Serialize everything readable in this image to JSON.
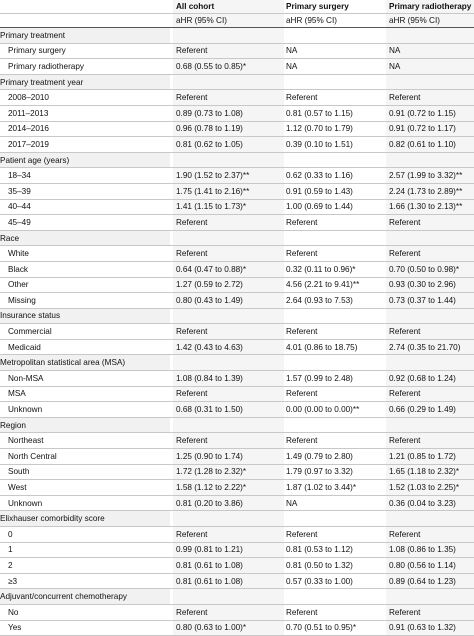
{
  "headers": {
    "col1": "All cohort",
    "col2": "Primary surgery",
    "col3": "Primary radiotherapy",
    "sub1": "aHR (95% CI)",
    "sub2": "aHR (95% CI)",
    "sub3": "aHR (95% CI)"
  },
  "rows": [
    {
      "type": "section",
      "label": "Primary treatment",
      "c1": "",
      "c2": "",
      "c3": ""
    },
    {
      "type": "item",
      "label": "Primary surgery",
      "c1": "Referent",
      "c2": "NA",
      "c3": "NA"
    },
    {
      "type": "item",
      "label": "Primary radiotherapy",
      "c1": "0.68 (0.55 to 0.85)*",
      "c2": "NA",
      "c3": "NA"
    },
    {
      "type": "section",
      "label": "Primary treatment year",
      "c1": "",
      "c2": "",
      "c3": ""
    },
    {
      "type": "item",
      "label": "2008–2010",
      "c1": "Referent",
      "c2": "Referent",
      "c3": "Referent"
    },
    {
      "type": "item",
      "label": "2011–2013",
      "c1": "0.89 (0.73 to 1.08)",
      "c2": "0.81 (0.57 to 1.15)",
      "c3": "0.91 (0.72 to 1.15)"
    },
    {
      "type": "item",
      "label": "2014–2016",
      "c1": "0.96 (0.78 to 1.19)",
      "c2": "1.12 (0.70 to 1.79)",
      "c3": "0.91 (0.72 to 1.17)"
    },
    {
      "type": "item",
      "label": "2017–2019",
      "c1": "0.81 (0.62 to 1.05)",
      "c2": "0.39 (0.10 to 1.51)",
      "c3": "0.82 (0.61 to 1.10)"
    },
    {
      "type": "section",
      "label": "Patient age (years)",
      "c1": "",
      "c2": "",
      "c3": ""
    },
    {
      "type": "item",
      "label": "18–34",
      "c1": "1.90 (1.52 to 2.37)**",
      "c2": "0.62 (0.33 to 1.16)",
      "c3": "2.57 (1.99 to 3.32)**"
    },
    {
      "type": "item",
      "label": "35–39",
      "c1": "1.75 (1.41 to 2.16)**",
      "c2": "0.91 (0.59 to 1.43)",
      "c3": "2.24 (1.73 to 2.89)**"
    },
    {
      "type": "item",
      "label": "40–44",
      "c1": "1.41 (1.15 to 1.73)*",
      "c2": "1.00 (0.69 to 1.44)",
      "c3": "1.66 (1.30 to 2.13)**"
    },
    {
      "type": "item",
      "label": "45–49",
      "c1": "Referent",
      "c2": "Referent",
      "c3": "Referent"
    },
    {
      "type": "section",
      "label": "Race",
      "c1": "",
      "c2": "",
      "c3": ""
    },
    {
      "type": "item",
      "label": "White",
      "c1": "Referent",
      "c2": "Referent",
      "c3": "Referent"
    },
    {
      "type": "item",
      "label": "Black",
      "c1": "0.64 (0.47 to 0.88)*",
      "c2": "0.32 (0.11 to 0.96)*",
      "c3": "0.70 (0.50 to 0.98)*"
    },
    {
      "type": "item",
      "label": "Other",
      "c1": "1.27 (0.59 to 2.72)",
      "c2": "4.56 (2.21 to 9.41)**",
      "c3": "0.93 (0.30 to 2.96)"
    },
    {
      "type": "item",
      "label": "Missing",
      "c1": "0.80 (0.43 to 1.49)",
      "c2": "2.64 (0.93 to 7.53)",
      "c3": "0.73 (0.37 to 1.44)"
    },
    {
      "type": "section",
      "label": "Insurance status",
      "c1": "",
      "c2": "",
      "c3": ""
    },
    {
      "type": "item",
      "label": "Commercial",
      "c1": "Referent",
      "c2": "Referent",
      "c3": "Referent"
    },
    {
      "type": "item",
      "label": "Medicaid",
      "c1": "1.42 (0.43 to 4.63)",
      "c2": "4.01 (0.86 to 18.75)",
      "c3": "2.74 (0.35 to 21.70)"
    },
    {
      "type": "section",
      "label": "Metropolitan statistical area (MSA)",
      "c1": "",
      "c2": "",
      "c3": ""
    },
    {
      "type": "item",
      "label": "Non-MSA",
      "c1": "1.08 (0.84 to 1.39)",
      "c2": "1.57 (0.99 to 2.48)",
      "c3": "0.92 (0.68 to 1.24)"
    },
    {
      "type": "item",
      "label": "MSA",
      "c1": "Referent",
      "c2": "Referent",
      "c3": "Referent"
    },
    {
      "type": "item",
      "label": "Unknown",
      "c1": "0.68 (0.31 to 1.50)",
      "c2": "0.00 (0.00 to 0.00)**",
      "c3": "0.66 (0.29 to 1.49)"
    },
    {
      "type": "section",
      "label": "Region",
      "c1": "",
      "c2": "",
      "c3": ""
    },
    {
      "type": "item",
      "label": "Northeast",
      "c1": "Referent",
      "c2": "Referent",
      "c3": "Referent"
    },
    {
      "type": "item",
      "label": "North Central",
      "c1": "1.25 (0.90 to 1.74)",
      "c2": "1.49 (0.79 to 2.80)",
      "c3": "1.21 (0.85 to 1.72)"
    },
    {
      "type": "item",
      "label": "South",
      "c1": "1.72 (1.28 to 2.32)*",
      "c2": "1.79 (0.97 to 3.32)",
      "c3": "1.65 (1.18 to 2.32)*"
    },
    {
      "type": "item",
      "label": "West",
      "c1": "1.58 (1.12 to 2.22)*",
      "c2": "1.87 (1.02 to 3.44)*",
      "c3": "1.52 (1.03 to 2.25)*"
    },
    {
      "type": "item",
      "label": "Unknown",
      "c1": "0.81 (0.20 to 3.86)",
      "c2": "NA",
      "c3": "0.36 (0.04 to 3.23)"
    },
    {
      "type": "section",
      "label": "Elixhauser comorbidity score",
      "c1": "",
      "c2": "",
      "c3": ""
    },
    {
      "type": "item",
      "label": "0",
      "c1": "Referent",
      "c2": "Referent",
      "c3": "Referent"
    },
    {
      "type": "item",
      "label": "1",
      "c1": "0.99 (0.81 to 1.21)",
      "c2": "0.81 (0.53 to 1.12)",
      "c3": "1.08 (0.86 to 1.35)"
    },
    {
      "type": "item",
      "label": "2",
      "c1": "0.81 (0.61 to 1.08)",
      "c2": "0.81 (0.50 to 1.32)",
      "c3": "0.80 (0.56 to 1.14)"
    },
    {
      "type": "item",
      "label": "≥3",
      "c1": "0.81 (0.61 to 1.08)",
      "c2": "0.57 (0.33 to 1.00)",
      "c3": "0.89 (0.64 to 1.23)"
    },
    {
      "type": "section",
      "label": "Adjuvant/concurrent chemotherapy",
      "c1": "",
      "c2": "",
      "c3": ""
    },
    {
      "type": "item",
      "label": "No",
      "c1": "Referent",
      "c2": "Referent",
      "c3": "Referent"
    },
    {
      "type": "item",
      "label": "Yes",
      "c1": "0.80 (0.63 to 1.00)*",
      "c2": "0.70 (0.51 to 0.95)*",
      "c3": "0.91 (0.63 to 1.32)"
    }
  ]
}
